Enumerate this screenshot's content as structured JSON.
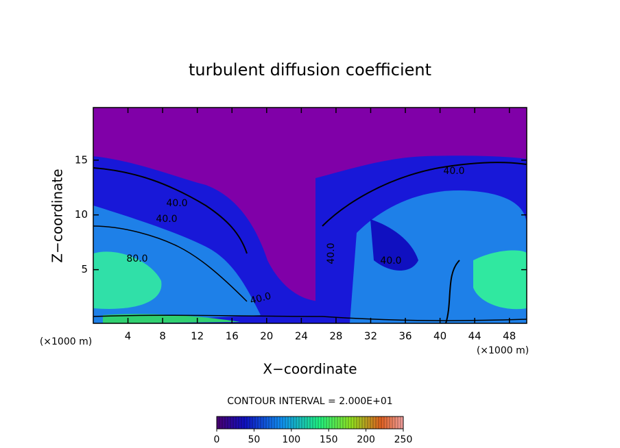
{
  "chart_data": {
    "type": "contour",
    "title": "turbulent diffusion coefficient",
    "x_label": "X−coordinate",
    "y_label": "Z−coordinate",
    "y_unit_label": "(×1000 m)",
    "x_unit_label": "(×1000 m)",
    "xlim": [
      0,
      50
    ],
    "ylim": [
      0.1,
      19.8
    ],
    "xticks": [
      4,
      8,
      12,
      16,
      20,
      24,
      28,
      32,
      36,
      40,
      44,
      48
    ],
    "yticks": [
      5,
      10,
      15
    ],
    "contour_interval_label": "CONTOUR INTERVAL = 2.000E+01",
    "contour_labels": [
      "40.0",
      "40.0",
      "80.0",
      "40.0",
      "40.0",
      "40.0",
      "40.0"
    ],
    "colorbar_lim": [
      0,
      250
    ],
    "colorbar_ticks": [
      0,
      50,
      100,
      150,
      200,
      250
    ]
  }
}
